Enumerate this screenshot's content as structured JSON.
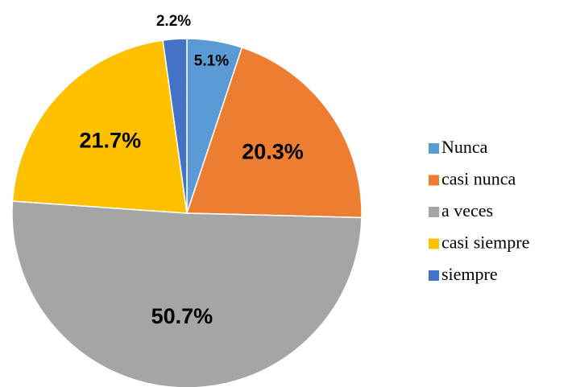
{
  "chart_data": {
    "type": "pie",
    "categories": [
      "Nunca",
      "casi nunca",
      "a veces",
      "casi siempre",
      "siempre"
    ],
    "values": [
      5.1,
      20.3,
      50.7,
      21.7,
      2.2
    ],
    "value_labels": [
      "5.1%",
      "20.3%",
      "50.7%",
      "21.7%",
      "2.2%"
    ],
    "colors": [
      "#5b9bd5",
      "#ed7d31",
      "#a5a5a5",
      "#ffc000",
      "#4472c4"
    ],
    "legend": "right"
  }
}
